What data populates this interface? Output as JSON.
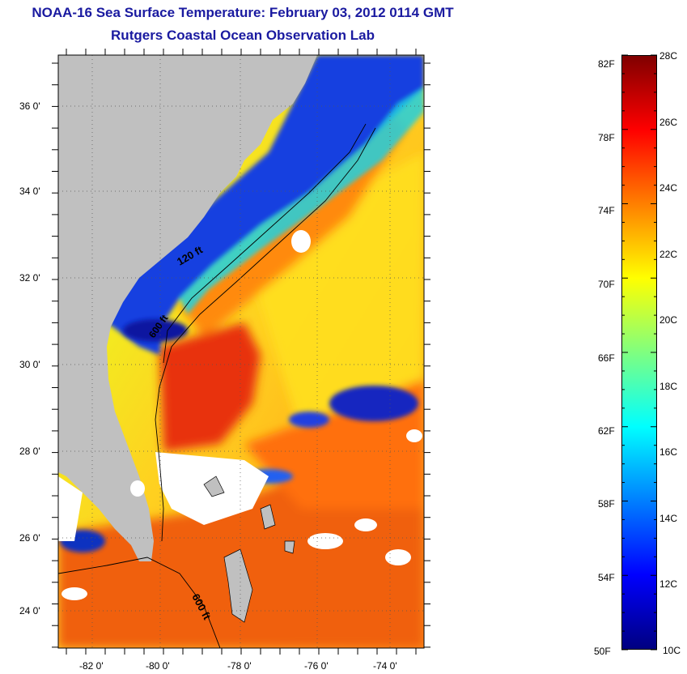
{
  "title": {
    "line1": "NOAA-16 Sea Surface Temperature:  February 03, 2012 0114 GMT",
    "line2": "Rutgers Coastal Ocean Observation Lab"
  },
  "map": {
    "lat_labels": [
      "36 0'",
      "34 0'",
      "32 0'",
      "30 0'",
      "28 0'",
      "26 0'",
      "24 0'"
    ],
    "lon_labels": [
      "-82 0'",
      "-80 0'",
      "-78 0'",
      "-76 0'",
      "-74 0'"
    ],
    "contour_labels": [
      "120 ft",
      "600 ft",
      "600 ft"
    ],
    "colors": {
      "land": "#c0c0c0",
      "cloud": "#ffffff",
      "cold": "#1030d0",
      "gulf_stream": "#e83010"
    }
  },
  "colorbar": {
    "fahrenheit_labels": [
      "82F",
      "78F",
      "74F",
      "70F",
      "66F",
      "62F",
      "58F",
      "54F",
      "50F"
    ],
    "celsius_labels": [
      "28C",
      "26C",
      "24C",
      "22C",
      "20C",
      "18C",
      "16C",
      "14C",
      "12C",
      "10C"
    ],
    "colormap": "jet"
  }
}
